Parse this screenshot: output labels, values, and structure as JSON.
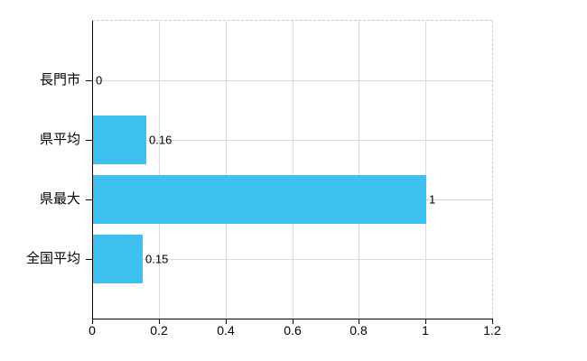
{
  "chart_data": {
    "type": "bar",
    "orientation": "horizontal",
    "title": "",
    "categories": [
      "長門市",
      "県平均",
      "県最大",
      "全国平均"
    ],
    "values": [
      0,
      0.16,
      1,
      0.15
    ],
    "value_labels": [
      "0",
      "0.16",
      "1",
      "0.15"
    ],
    "xlim": [
      0,
      1.2
    ],
    "x_tick_values": [
      0,
      0.2,
      0.4,
      0.6,
      0.8,
      1,
      1.2
    ],
    "x_tick_labels": [
      "0",
      "0.2",
      "0.4",
      "0.6",
      "0.8",
      "1",
      "1.2"
    ],
    "grid": true,
    "legend": false,
    "plot_border": "dashed-top-right",
    "colors": {
      "bar": "#3FC1F0",
      "gridline": "#d7ddd7",
      "dashed_border": "#c9c9c9",
      "axis": "#000000",
      "text": "#000000",
      "background": "#ffffff"
    }
  }
}
